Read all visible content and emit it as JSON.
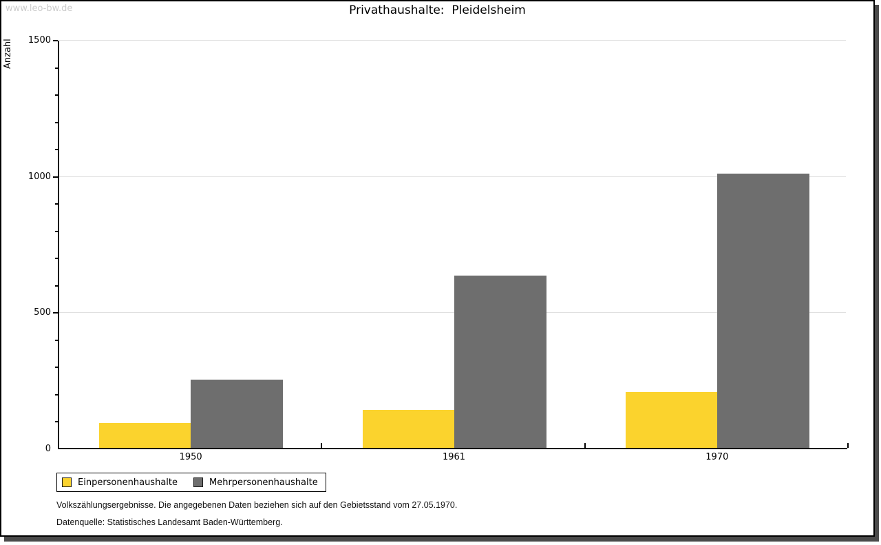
{
  "watermark": "www.leo-bw.de",
  "title": "Privathaushalte:  Pleidelsheim",
  "chart_data": {
    "type": "bar",
    "title": "Privathaushalte: Pleidelsheim",
    "categories": [
      "1950",
      "1961",
      "1970"
    ],
    "series": [
      {
        "name": "Einpersonenhaushalte",
        "color": "#fbd32d",
        "values": [
          91,
          139,
          205
        ]
      },
      {
        "name": "Mehrpersonenhaushalte",
        "color": "#6e6e6e",
        "values": [
          250,
          633,
          1007
        ]
      }
    ],
    "xlabel": "",
    "ylabel": "Anzahl",
    "ylim": [
      0,
      1500
    ],
    "yticks_major": [
      0,
      500,
      1000,
      1500
    ],
    "ytick_minor_step": 100,
    "grid": true,
    "grid_color": "#e0e0e0",
    "legend_position": "bottom-left"
  },
  "footer": {
    "line1": "Volkszählungsergebnisse. Die angegebenen Daten beziehen sich auf den Gebietsstand vom 27.05.1970.",
    "line2": "Datenquelle: Statistisches Landesamt Baden-Württemberg."
  }
}
